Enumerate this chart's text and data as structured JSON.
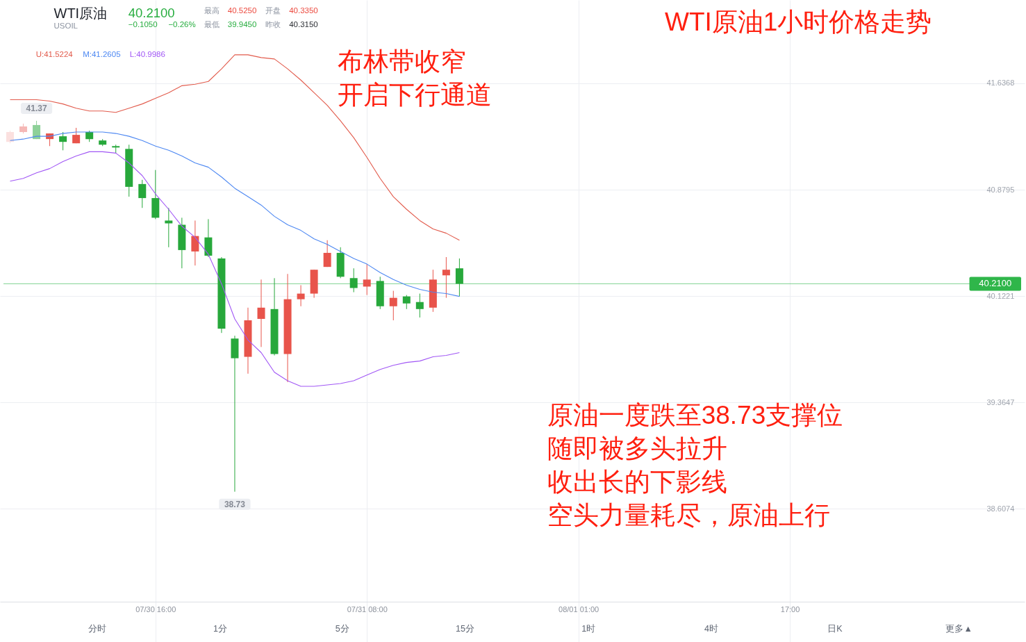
{
  "chart_data": {
    "type": "candlestick",
    "title": "WTI原油1小时价格走势",
    "categories": [
      null,
      null,
      null,
      null,
      null,
      null,
      null,
      null,
      null,
      null,
      null,
      "07/30 16:00",
      null,
      null,
      null,
      null,
      null,
      null,
      null,
      null,
      null,
      null,
      null,
      null,
      null,
      null,
      null,
      "07/31 08:00",
      null,
      null,
      null,
      null,
      null,
      null,
      null,
      null,
      null,
      null,
      null,
      null,
      null,
      null,
      null,
      "08/01 01:00",
      null,
      null,
      null,
      null,
      null,
      null,
      null,
      null,
      null,
      null,
      null,
      null,
      null,
      null,
      null,
      "17:00",
      null,
      null,
      null,
      null,
      null,
      null,
      null,
      null,
      null,
      null,
      null,
      null,
      null,
      null,
      null,
      null,
      null
    ],
    "ohlc": [
      [
        41.22,
        41.3,
        41.21,
        41.29
      ],
      [
        41.29,
        41.35,
        41.28,
        41.33
      ],
      [
        41.34,
        41.37,
        41.24,
        41.24
      ],
      [
        41.24,
        41.28,
        41.19,
        41.28
      ],
      [
        41.26,
        41.29,
        41.16,
        41.22
      ],
      [
        41.21,
        41.32,
        41.21,
        41.27
      ],
      [
        41.29,
        41.3,
        41.22,
        41.24
      ],
      [
        41.23,
        41.24,
        41.19,
        41.2
      ],
      [
        41.19,
        41.2,
        41.14,
        41.18
      ],
      [
        41.17,
        41.2,
        40.83,
        40.9
      ],
      [
        40.92,
        40.95,
        40.75,
        40.82
      ],
      [
        40.82,
        41.02,
        40.67,
        40.68
      ],
      [
        40.66,
        40.75,
        40.47,
        40.64
      ],
      [
        40.63,
        40.68,
        40.32,
        40.45
      ],
      [
        40.44,
        40.66,
        40.34,
        40.55
      ],
      [
        40.54,
        40.67,
        40.4,
        40.41
      ],
      [
        40.39,
        40.4,
        39.86,
        39.89
      ],
      [
        39.82,
        39.84,
        38.73,
        39.68
      ],
      [
        39.69,
        40.04,
        39.57,
        39.95
      ],
      [
        39.96,
        40.24,
        39.76,
        40.04
      ],
      [
        40.03,
        40.25,
        39.7,
        39.71
      ],
      [
        39.71,
        40.28,
        39.51,
        40.1
      ],
      [
        40.1,
        40.2,
        40.05,
        40.14
      ],
      [
        40.14,
        40.31,
        40.11,
        40.31
      ],
      [
        40.33,
        40.52,
        40.33,
        40.43
      ],
      [
        40.43,
        40.47,
        40.25,
        40.26
      ],
      [
        40.25,
        40.32,
        40.15,
        40.18
      ],
      [
        40.19,
        40.35,
        40.13,
        40.24
      ],
      [
        40.23,
        40.26,
        40.03,
        40.05
      ],
      [
        40.05,
        40.16,
        39.95,
        40.11
      ],
      [
        40.12,
        40.13,
        40.03,
        40.07
      ],
      [
        40.08,
        40.14,
        39.97,
        40.03
      ],
      [
        40.04,
        40.31,
        40.01,
        40.24
      ],
      [
        40.27,
        40.4,
        40.11,
        40.31
      ],
      [
        40.32,
        40.39,
        40.12,
        40.21
      ],
      null,
      null,
      null,
      null,
      null,
      null,
      null,
      null,
      null,
      null,
      null,
      null,
      null,
      null,
      null,
      null,
      null,
      null,
      null,
      null,
      null,
      null,
      null,
      null,
      null,
      null,
      null,
      null,
      null,
      null,
      null,
      null,
      null,
      null,
      null,
      null,
      null,
      null,
      null,
      null,
      null,
      null
    ],
    "colors": [
      "#fbe0df",
      "#f5b8b6",
      "#8ed199",
      "#e8544b",
      "#27a83b",
      "#e8544b",
      "#27a83b",
      "#27a83b",
      "#27a83b",
      "#27a83b",
      "#27a83b",
      "#27a83b",
      "#27a83b",
      "#27a83b",
      "#e8544b",
      "#27a83b",
      "#27a83b",
      "#27a83b",
      "#e8544b",
      "#e8544b",
      "#27a83b",
      "#e8544b",
      "#e8544b",
      "#e8544b",
      "#e8544b",
      "#27a83b",
      "#27a83b",
      "#e8544b",
      "#27a83b",
      "#e8544b",
      "#27a83b",
      "#27a83b",
      "#e8544b",
      "#e8544b",
      "#27a83b",
      null,
      null,
      null,
      null,
      null,
      null,
      null,
      null,
      null,
      null,
      null,
      null,
      null,
      null,
      null,
      null,
      null,
      null,
      null,
      null,
      null,
      null,
      null,
      null,
      null,
      null,
      null,
      null,
      null,
      null,
      null,
      null,
      null,
      null,
      null,
      null,
      null,
      null,
      null,
      null,
      null,
      null
    ],
    "series": [
      {
        "type": "line",
        "name": "U:41.5224",
        "color": "#e25b4c",
        "values": [
          41.52,
          41.52,
          41.52,
          41.51,
          41.49,
          41.46,
          41.44,
          41.44,
          41.43,
          41.46,
          41.49,
          41.53,
          41.57,
          41.62,
          41.63,
          41.65,
          41.74,
          41.84,
          41.84,
          41.82,
          41.81,
          41.74,
          41.66,
          41.57,
          41.48,
          41.37,
          41.25,
          41.11,
          40.96,
          40.83,
          40.74,
          40.66,
          40.6,
          40.57,
          40.52,
          null,
          null,
          null,
          null,
          null,
          null,
          null,
          null,
          null,
          null,
          null,
          null,
          null,
          null,
          null,
          null,
          null,
          null,
          null,
          null,
          null,
          null,
          null,
          null,
          null,
          null,
          null,
          null,
          null,
          null,
          null,
          null,
          null,
          null,
          null,
          null,
          null,
          null,
          null,
          null,
          null,
          null
        ]
      },
      {
        "type": "line",
        "name": "M:41.2605",
        "color": "#4d88f2",
        "values": [
          41.23,
          41.24,
          41.26,
          41.26,
          41.28,
          41.29,
          41.29,
          41.29,
          41.28,
          41.26,
          41.23,
          41.19,
          41.16,
          41.12,
          41.07,
          41.04,
          40.97,
          40.89,
          40.83,
          40.77,
          40.69,
          40.63,
          40.59,
          40.53,
          40.49,
          40.44,
          40.39,
          40.35,
          40.29,
          40.24,
          40.2,
          40.17,
          40.15,
          40.14,
          40.12,
          null,
          null,
          null,
          null,
          null,
          null,
          null,
          null,
          null,
          null,
          null,
          null,
          null,
          null,
          null,
          null,
          null,
          null,
          null,
          null,
          null,
          null,
          null,
          null,
          null,
          null,
          null,
          null,
          null,
          null,
          null,
          null,
          null,
          null,
          null,
          null,
          null,
          null,
          null,
          null,
          null,
          null
        ]
      },
      {
        "type": "line",
        "name": "L:40.9986",
        "color": "#a157f5",
        "values": [
          40.94,
          40.96,
          41.0,
          41.03,
          41.08,
          41.12,
          41.15,
          41.15,
          41.14,
          41.07,
          40.98,
          40.85,
          40.74,
          40.62,
          40.54,
          40.42,
          40.21,
          39.96,
          39.81,
          39.72,
          39.58,
          39.52,
          39.48,
          39.48,
          39.49,
          39.5,
          39.52,
          39.56,
          39.6,
          39.63,
          39.65,
          39.66,
          39.69,
          39.7,
          39.72,
          null,
          null,
          null,
          null,
          null,
          null,
          null,
          null,
          null,
          null,
          null,
          null,
          null,
          null,
          null,
          null,
          null,
          null,
          null,
          null,
          null,
          null,
          null,
          null,
          null,
          null,
          null,
          null,
          null,
          null,
          null,
          null,
          null,
          null,
          null,
          null,
          null,
          null,
          null,
          null,
          null,
          null
        ]
      }
    ],
    "ylim": [
      37.66,
      42.23
    ],
    "yticks": [
      41.6368,
      40.8795,
      40.1221,
      39.3647,
      38.6074
    ],
    "grid": true,
    "legend": "top left",
    "ref_lines": [
      {
        "axis": "y",
        "value": 40.21,
        "label": "40.2100",
        "color": "#2fb64a"
      }
    ],
    "annotations": [
      "WTI原油",
      "USOIL",
      "40.2100",
      "−0.1050",
      "−0.26%",
      "最高",
      "40.5250",
      "开盘",
      "40.3350",
      "最低",
      "39.9450",
      "昨收",
      "40.3150",
      "布林带收窄",
      "开启下行通道",
      "原油一度跌至38.73支撑位",
      "随即被多头拉升",
      "收出长的下影线",
      "空头力量耗尽，原油上行",
      {
        "text": "41.37",
        "y": 41.37
      },
      {
        "text": "38.73",
        "y": 38.73
      },
      "分时",
      "1分",
      "5分",
      "15分",
      "1时",
      "4时",
      "日K",
      "更多▲"
    ]
  }
}
